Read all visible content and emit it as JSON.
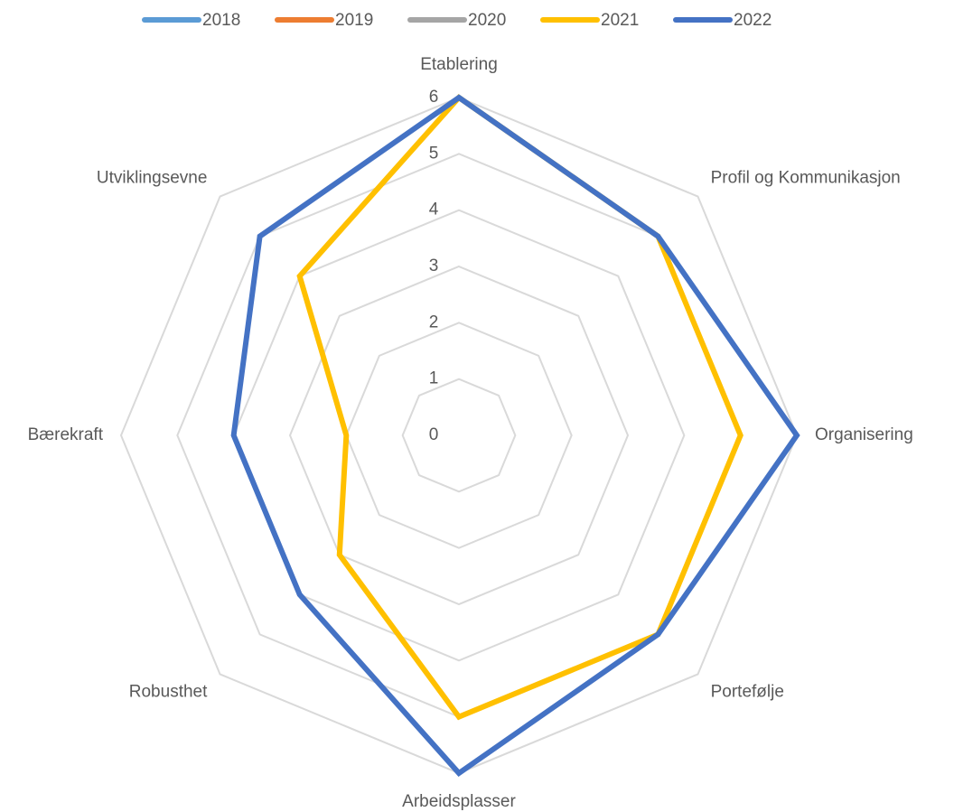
{
  "chart_data": {
    "type": "radar",
    "categories": [
      "Etablering",
      "Profil og Kommunikasjon",
      "Organisering",
      "Portefølje",
      "Arbeidsplasser",
      "Robusthet",
      "Bærekraft",
      "Utviklingsevne"
    ],
    "series": [
      {
        "name": "2018",
        "color": "#5b9bd5",
        "values": [
          null,
          null,
          null,
          null,
          null,
          null,
          null,
          null
        ]
      },
      {
        "name": "2019",
        "color": "#ed7d31",
        "values": [
          null,
          null,
          null,
          null,
          null,
          null,
          null,
          null
        ]
      },
      {
        "name": "2020",
        "color": "#a5a5a5",
        "values": [
          null,
          null,
          null,
          null,
          null,
          null,
          null,
          null
        ]
      },
      {
        "name": "2021",
        "color": "#ffc000",
        "values": [
          6,
          5,
          5,
          5,
          5,
          3,
          2,
          4
        ]
      },
      {
        "name": "2022",
        "color": "#4472c4",
        "values": [
          6,
          5,
          6,
          5,
          6,
          4,
          4,
          5
        ]
      }
    ],
    "ylim": [
      0,
      6
    ],
    "yticks": [
      0,
      1,
      2,
      3,
      4,
      5,
      6
    ],
    "grid": true,
    "legend": "top"
  }
}
